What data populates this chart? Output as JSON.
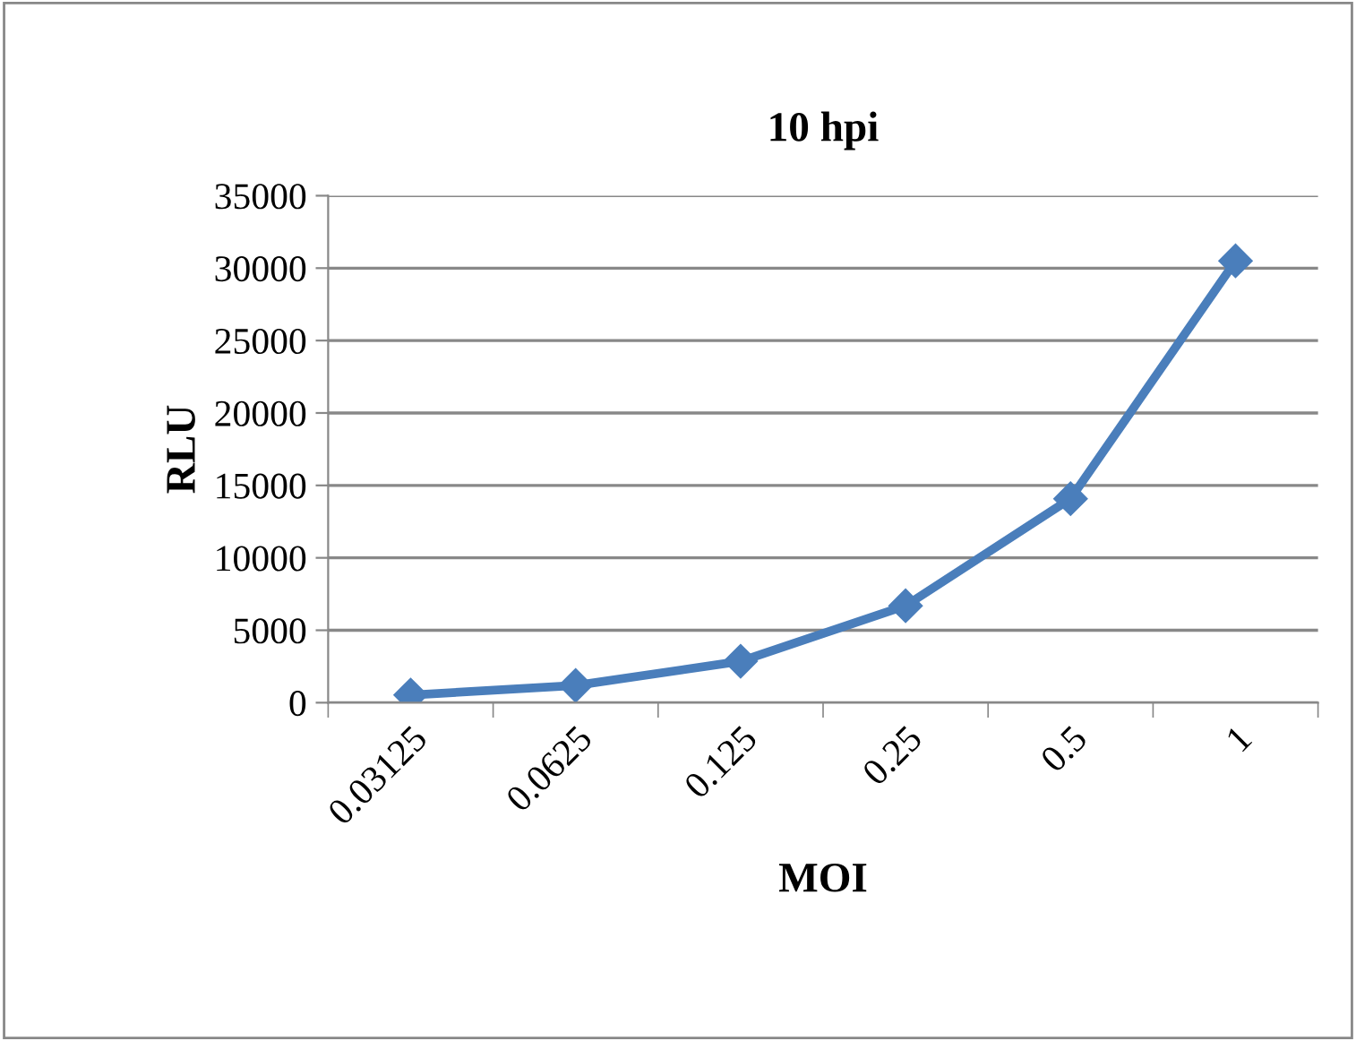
{
  "chart_data": {
    "type": "line",
    "title": "10 hpi",
    "xlabel": "MOI",
    "ylabel": "RLU",
    "categories": [
      "0.03125",
      "0.0625",
      "0.125",
      "0.25",
      "0.5",
      "1"
    ],
    "series": [
      {
        "color": "#4a7ebb",
        "values": [
          530,
          1190,
          2860,
          6690,
          14080,
          30500
        ]
      }
    ],
    "ylim": [
      0,
      35000
    ],
    "yticks": [
      0,
      5000,
      10000,
      15000,
      20000,
      25000,
      30000,
      35000
    ],
    "grid": "y",
    "marker": "diamond",
    "line_style": "solid",
    "legend": false
  }
}
